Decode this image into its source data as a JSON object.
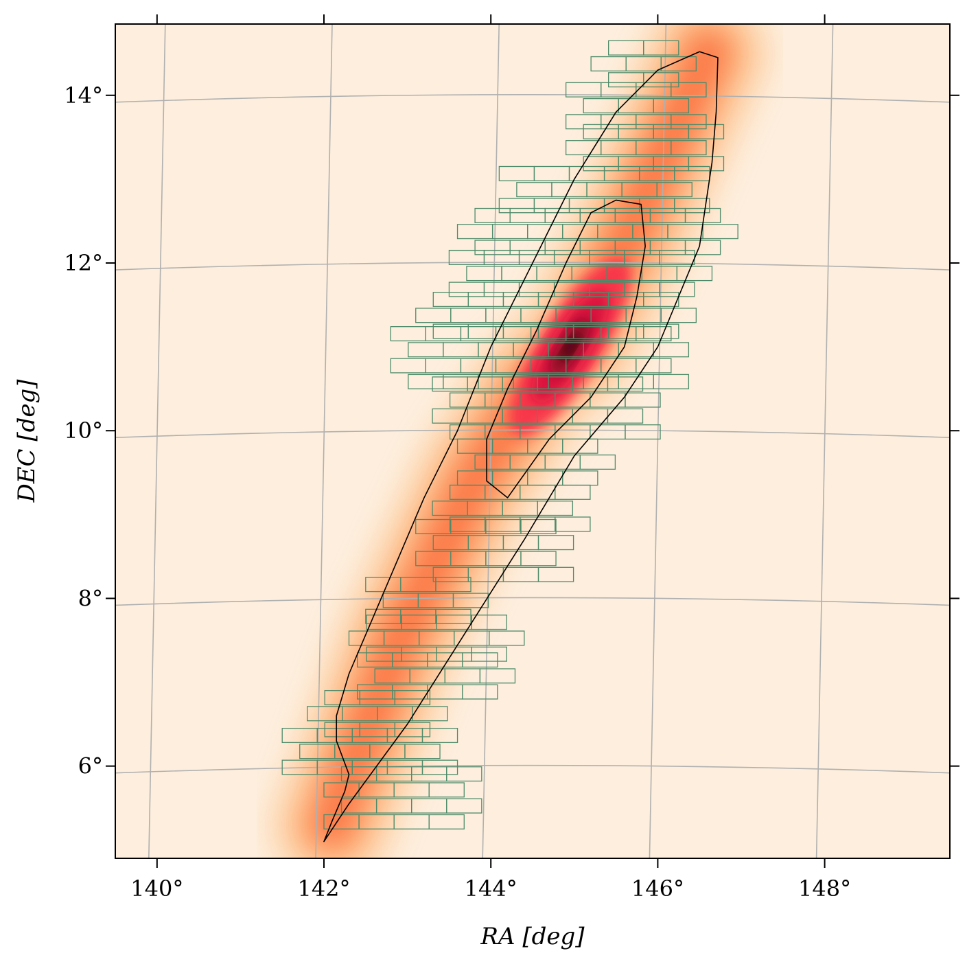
{
  "chart_data": {
    "type": "heatmap",
    "title": "",
    "xlabel": "RA [deg]",
    "ylabel": "DEC [deg]",
    "xlim": [
      139.5,
      149.5
    ],
    "ylim": [
      4.9,
      14.85
    ],
    "grid": true,
    "x_ticks": [
      140,
      142,
      144,
      146,
      148
    ],
    "y_ticks": [
      6,
      8,
      10,
      12,
      14
    ],
    "x_tick_labels": [
      "140°",
      "142°",
      "144°",
      "146°",
      "148°"
    ],
    "y_tick_labels": [
      "6°",
      "8°",
      "10°",
      "12°",
      "14°"
    ],
    "density_peak": {
      "ra": 144.95,
      "dec": 11.0
    },
    "density_ridge": [
      [
        142.1,
        5.3
      ],
      [
        142.9,
        7.5
      ],
      [
        143.8,
        9.4
      ],
      [
        144.5,
        10.5
      ],
      [
        145.0,
        11.0
      ],
      [
        145.6,
        12.2
      ],
      [
        146.2,
        13.6
      ],
      [
        146.6,
        14.5
      ]
    ],
    "contours": [
      {
        "level": "outer",
        "points": [
          [
            142.0,
            5.1
          ],
          [
            142.3,
            5.55
          ],
          [
            143.0,
            6.5
          ],
          [
            143.7,
            7.6
          ],
          [
            144.4,
            8.7
          ],
          [
            145.0,
            9.7
          ],
          [
            145.6,
            10.4
          ],
          [
            146.0,
            11.0
          ],
          [
            146.5,
            12.2
          ],
          [
            146.65,
            13.2
          ],
          [
            146.7,
            13.8
          ],
          [
            146.72,
            14.45
          ],
          [
            146.5,
            14.52
          ],
          [
            146.0,
            14.3
          ],
          [
            145.5,
            13.8
          ],
          [
            145.0,
            13.0
          ],
          [
            144.5,
            12.0
          ],
          [
            144.0,
            11.0
          ],
          [
            143.6,
            10.0
          ],
          [
            143.2,
            9.2
          ],
          [
            142.9,
            8.5
          ],
          [
            142.6,
            7.8
          ],
          [
            142.3,
            7.1
          ],
          [
            142.15,
            6.6
          ],
          [
            142.15,
            6.3
          ],
          [
            142.3,
            5.9
          ],
          [
            142.25,
            5.7
          ],
          [
            142.1,
            5.35
          ],
          [
            142.0,
            5.1
          ]
        ]
      },
      {
        "level": "inner",
        "points": [
          [
            144.2,
            9.2
          ],
          [
            144.7,
            9.9
          ],
          [
            145.2,
            10.4
          ],
          [
            145.6,
            11.0
          ],
          [
            145.75,
            11.6
          ],
          [
            145.85,
            12.2
          ],
          [
            145.8,
            12.7
          ],
          [
            145.5,
            12.75
          ],
          [
            145.2,
            12.6
          ],
          [
            144.9,
            12.0
          ],
          [
            144.55,
            11.2
          ],
          [
            144.2,
            10.5
          ],
          [
            143.95,
            9.9
          ],
          [
            143.95,
            9.4
          ],
          [
            144.2,
            9.2
          ]
        ]
      }
    ],
    "tiles": {
      "tile_width_deg": 0.42,
      "tile_height_deg": 0.17,
      "color": "#4e8b6a",
      "coverage": [
        {
          "dec": [
            5.25,
            5.9
          ],
          "ra": [
            142.0,
            143.9
          ]
        },
        {
          "dec": [
            5.9,
            6.35
          ],
          "ra": [
            141.5,
            143.7
          ]
        },
        {
          "dec": [
            6.35,
            6.8
          ],
          "ra": [
            141.8,
            143.6
          ]
        },
        {
          "dec": [
            6.8,
            7.25
          ],
          "ra": [
            142.4,
            144.3
          ]
        },
        {
          "dec": [
            7.25,
            7.7
          ],
          "ra": [
            142.3,
            144.5
          ]
        },
        {
          "dec": [
            7.7,
            8.2
          ],
          "ra": [
            142.5,
            144.0
          ]
        },
        {
          "dec": [
            8.2,
            8.8
          ],
          "ra": [
            143.1,
            145.0
          ]
        },
        {
          "dec": [
            8.8,
            9.35
          ],
          "ra": [
            143.3,
            145.2
          ]
        },
        {
          "dec": [
            9.35,
            9.9
          ],
          "ra": [
            143.6,
            145.6
          ]
        },
        {
          "dec": [
            9.9,
            10.5
          ],
          "ra": [
            143.3,
            146.1
          ]
        },
        {
          "dec": [
            10.5,
            11.1
          ],
          "ra": [
            142.8,
            146.4
          ]
        },
        {
          "dec": [
            11.1,
            11.6
          ],
          "ra": [
            143.1,
            146.6
          ]
        },
        {
          "dec": [
            11.6,
            12.1
          ],
          "ra": [
            143.5,
            146.8
          ]
        },
        {
          "dec": [
            12.1,
            12.6
          ],
          "ra": [
            143.6,
            147.1
          ]
        },
        {
          "dec": [
            12.6,
            13.1
          ],
          "ra": [
            144.1,
            146.8
          ]
        },
        {
          "dec": [
            13.1,
            13.6
          ],
          "ra": [
            144.9,
            146.9
          ]
        },
        {
          "dec": [
            13.6,
            14.1
          ],
          "ra": [
            144.9,
            146.7
          ]
        },
        {
          "dec": [
            14.1,
            14.55
          ],
          "ra": [
            145.2,
            146.5
          ]
        }
      ]
    },
    "colormap": [
      "#fdeedd",
      "#fdd8b2",
      "#fda76a",
      "#fb6b3a",
      "#f72a4a",
      "#d5083d",
      "#7a0821",
      "#2a0108"
    ],
    "grid_color": "#b0b0b0",
    "contour_color": "#000000"
  }
}
